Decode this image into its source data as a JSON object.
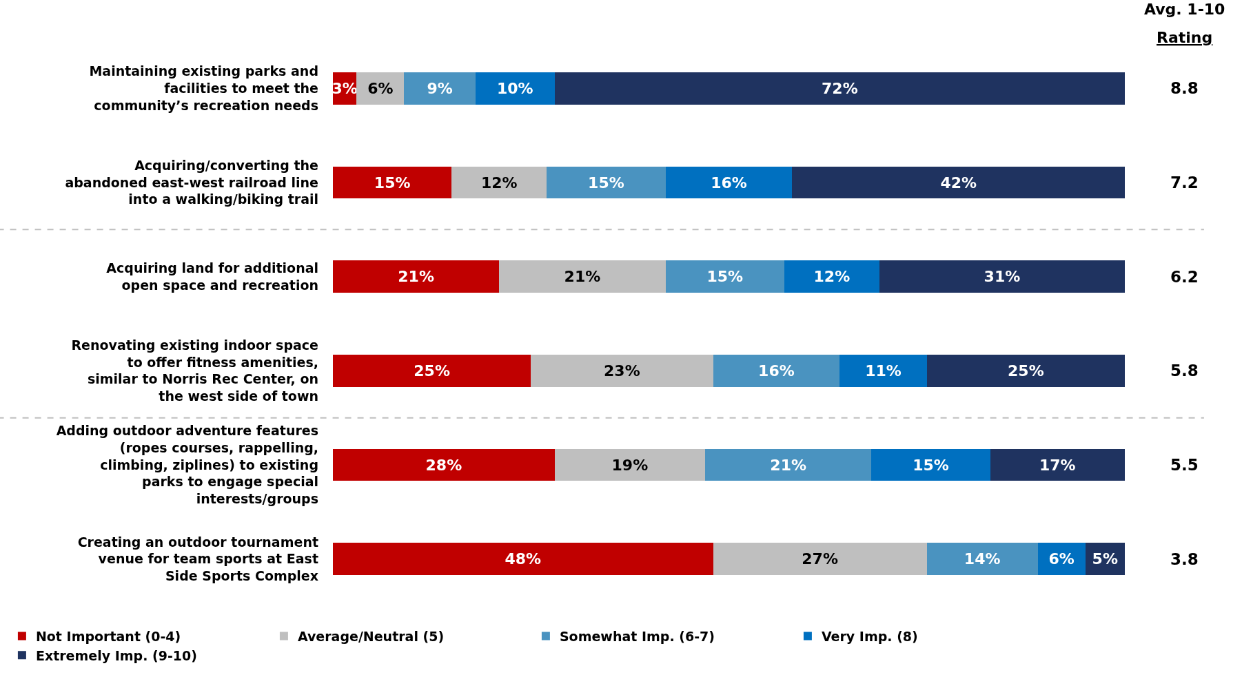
{
  "chart_data": {
    "type": "bar",
    "orientation": "horizontal",
    "stacked": true,
    "legend": "bottom",
    "tick_labels": "y",
    "categories": [
      "Maintaining existing parks and facilities to meet the community’s recreation needs",
      "Acquiring/converting the abandoned east-west railroad line into a walking/biking trail",
      "Acquiring land for additional open space and recreation",
      "Renovating existing indoor space to offer fitness amenities, similar to Norris Rec Center, on the west side of town",
      "Adding outdoor adventure features (ropes courses, rappelling, climbing, ziplines) to existing parks to engage special interests/groups",
      "Creating an outdoor tournament venue for team sports at East Side Sports Complex"
    ],
    "series": [
      {
        "name": "Not Important (0-4)",
        "color": "#c00000",
        "values": [
          3,
          15,
          21,
          25,
          28,
          48
        ],
        "value_labels": [
          "3%",
          "15%",
          "21%",
          "25%",
          "28%",
          "48%"
        ]
      },
      {
        "name": "Average/Neutral (5)",
        "color": "#bfbfbf",
        "values": [
          6,
          12,
          21,
          23,
          19,
          27
        ],
        "value_labels": [
          "6%",
          "12%",
          "21%",
          "23%",
          "19%",
          "27%"
        ]
      },
      {
        "name": "Somewhat Imp. (6-7)",
        "color": "#4a93c0",
        "values": [
          9,
          15,
          15,
          16,
          21,
          14
        ],
        "value_labels": [
          "9%",
          "15%",
          "15%",
          "16%",
          "21%",
          "14%"
        ]
      },
      {
        "name": "Very Imp. (8)",
        "color": "#0070c0",
        "values": [
          10,
          16,
          12,
          11,
          15,
          6
        ],
        "value_labels": [
          "10%",
          "16%",
          "12%",
          "11%",
          "15%",
          "6%"
        ]
      },
      {
        "name": "Extremely Imp. (9-10)",
        "color": "#1f3360",
        "values": [
          72,
          42,
          31,
          25,
          17,
          5
        ],
        "value_labels": [
          "72%",
          "42%",
          "31%",
          "25%",
          "17%",
          "5%"
        ]
      }
    ],
    "annotations": [
      "Avg. 1-10",
      "Rating",
      "8.8",
      "7.2",
      "6.2",
      "5.8",
      "5.5",
      "3.8"
    ]
  }
}
